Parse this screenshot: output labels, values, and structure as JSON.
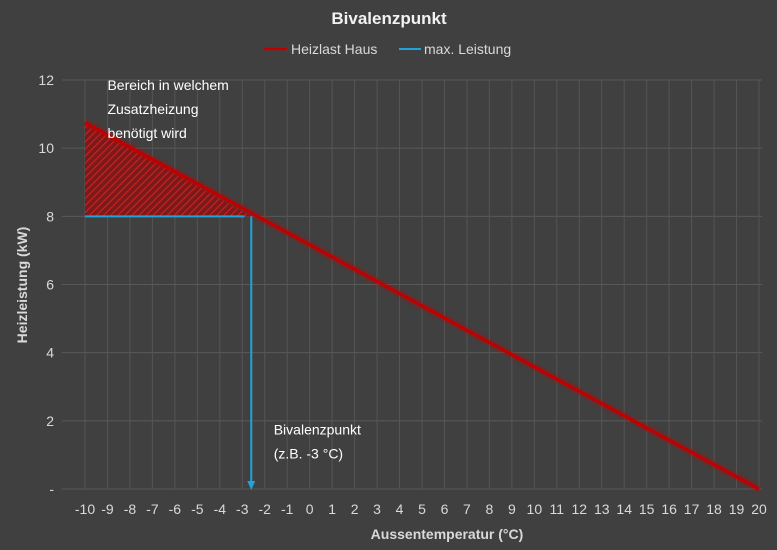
{
  "chart_data": {
    "type": "line",
    "title": "Bivalenzpunkt",
    "xlabel": "Aussentemperatur (°C)",
    "ylabel": "Heizleistung (kW)",
    "xlim": [
      -10,
      20
    ],
    "ylim": [
      0,
      12
    ],
    "x_ticks": [
      "-10",
      "-9",
      "-8",
      "-7",
      "-6",
      "-5",
      "-4",
      "-3",
      "-2",
      "-1",
      "0",
      "1",
      "2",
      "3",
      "4",
      "5",
      "6",
      "7",
      "8",
      "9",
      "10",
      "11",
      "12",
      "13",
      "14",
      "15",
      "16",
      "17",
      "18",
      "19",
      "20"
    ],
    "y_ticks": [
      {
        "value": 0,
        "label": "-"
      },
      {
        "value": 2,
        "label": "2"
      },
      {
        "value": 4,
        "label": "4"
      },
      {
        "value": 6,
        "label": "6"
      },
      {
        "value": 8,
        "label": "8"
      },
      {
        "value": 10,
        "label": "10"
      },
      {
        "value": 12,
        "label": "12"
      }
    ],
    "grid": true,
    "legend_position": "top",
    "series": [
      {
        "name": "Heizlast Haus",
        "color": "#c00000",
        "x": [
          -10,
          20
        ],
        "y": [
          10.75,
          0
        ]
      },
      {
        "name": "max. Leistung",
        "color": "#1fa3d9",
        "x": [
          -10,
          -2.9
        ],
        "y": [
          8,
          8
        ]
      }
    ],
    "bivalent_point": {
      "x": -2.6,
      "y": 8
    },
    "annotations": [
      {
        "lines": [
          "Bereich in welchem",
          "Zusatzheizung",
          "benötigt wird"
        ],
        "x": -9,
        "y": 11.7
      },
      {
        "lines": [
          "Bivalenzpunkt",
          "(z.B. -3 °C)"
        ],
        "x": -1.6,
        "y": 1.6
      }
    ]
  }
}
